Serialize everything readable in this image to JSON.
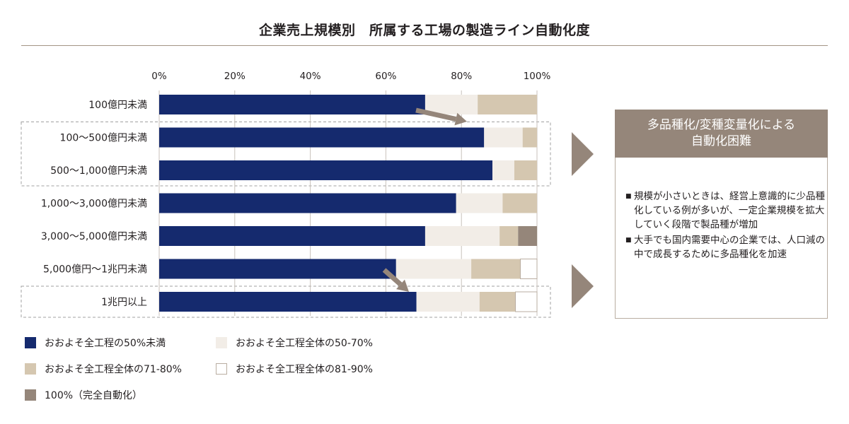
{
  "title": "企業売上規模別　所属する工場の製造ライン自動化度",
  "chart_data": {
    "type": "bar",
    "orientation": "horizontal",
    "stacked": true,
    "xticks": [
      "0%",
      "20%",
      "40%",
      "60%",
      "80%",
      "100%"
    ],
    "xlim": [
      0,
      100
    ],
    "categories": [
      "100億円未満",
      "100～500億円未満",
      "500～1,000億円未満",
      "1,000～3,000億円未満",
      "3,000～5,000億円未満",
      "5,000億円～1兆円未満",
      "1兆円以上"
    ],
    "series": [
      {
        "name": "おおよそ全工程の50%未満",
        "color": "#152a6e",
        "values": [
          70.4,
          86.0,
          88.2,
          78.6,
          70.4,
          62.7,
          68.1
        ]
      },
      {
        "name": "おおよそ全工程全体の50-70%",
        "color": "#f2ede7",
        "values": [
          13.9,
          10.2,
          5.8,
          12.3,
          19.7,
          19.9,
          16.7
        ]
      },
      {
        "name": "おおよそ全工程全体の71-80%",
        "color": "#d5c7b0",
        "values": [
          15.7,
          3.8,
          6.0,
          9.1,
          4.9,
          13.0,
          9.5
        ]
      },
      {
        "name": "おおよそ全工程全体の81-90%",
        "color": "#ffffff",
        "values": [
          0,
          0,
          0,
          0,
          0,
          4.4,
          5.7
        ]
      },
      {
        "name": "100%（完全自動化）",
        "color": "#95867a",
        "values": [
          0,
          0,
          0,
          0,
          5.0,
          0,
          0
        ]
      }
    ],
    "grid": false,
    "legend_position": "bottom"
  },
  "panel": {
    "heading_line1": "多品種化/変種変量化による",
    "heading_line2": "自動化困難",
    "bullet_mark": "■",
    "bullet1": "規模が小さいときは、経営上意識的に少品種化している例が多いが、一定企業規模を拡大していく段階で製品種が増加",
    "bullet2": "大手でも国内需要中心の企業では、人口減の中で成長するために多品種化を加速"
  },
  "colors": {
    "arrow": "#95867a",
    "accent": "#95867a",
    "dash": "#a0a0a0"
  }
}
